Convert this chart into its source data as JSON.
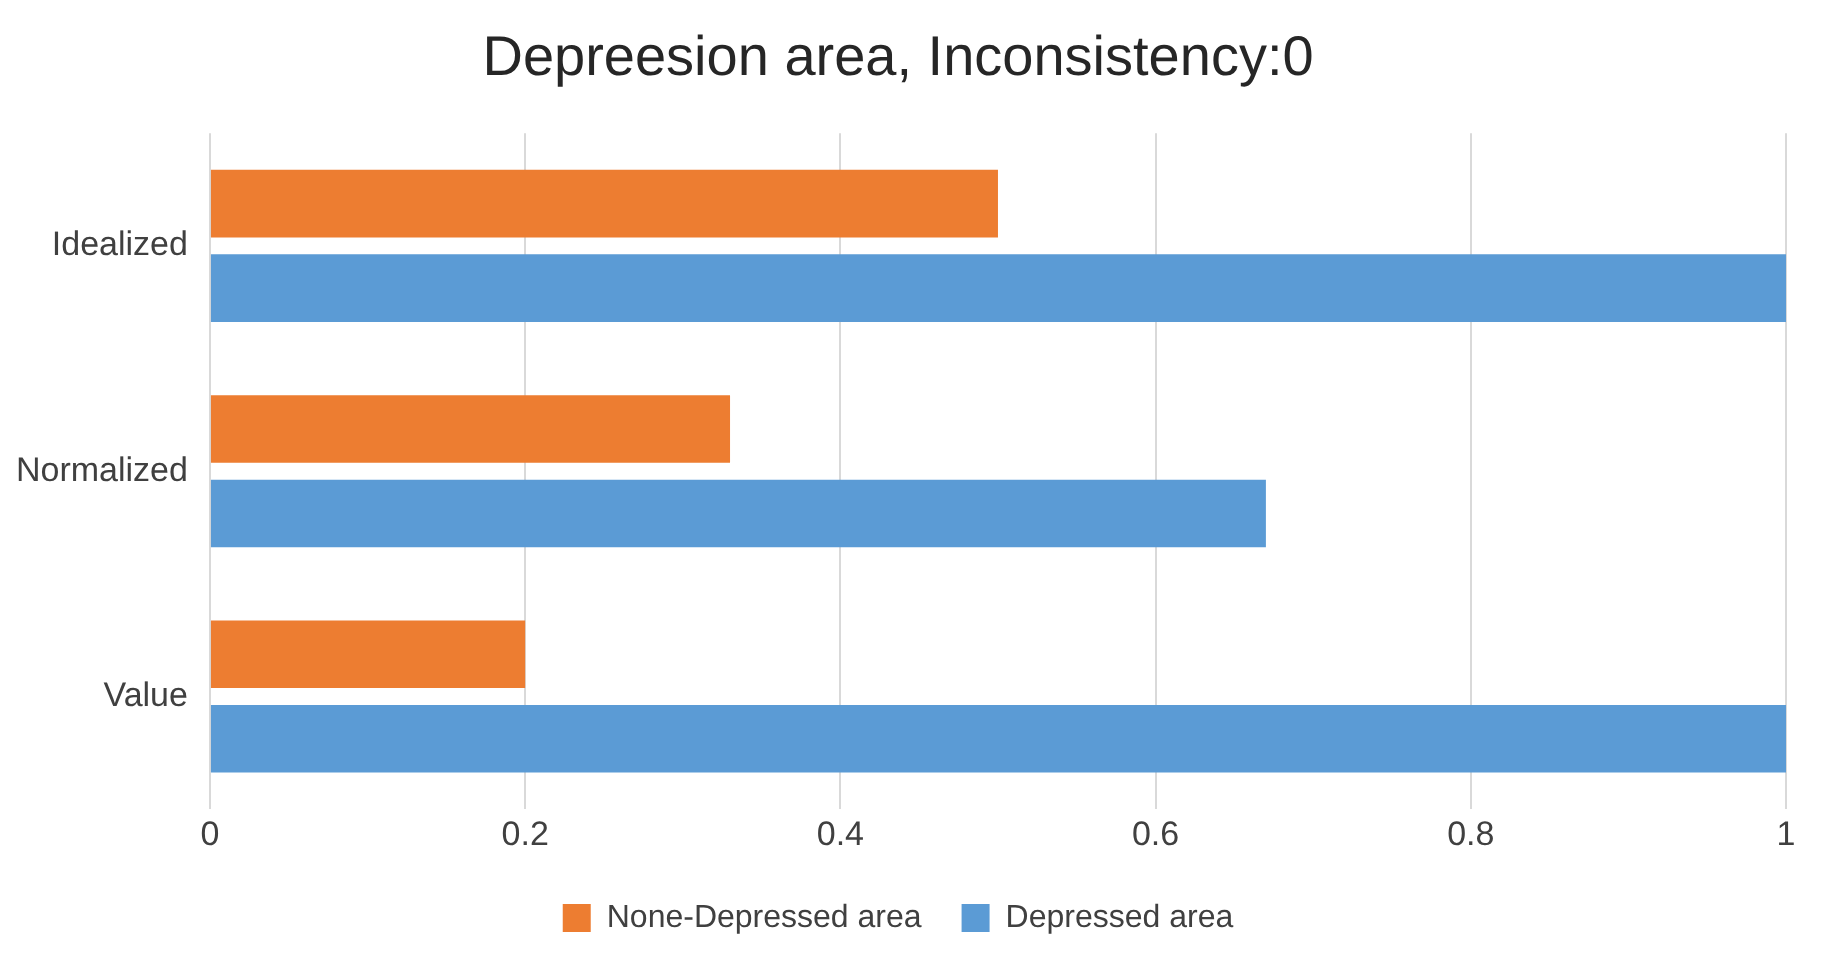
{
  "chart_data": {
    "type": "bar",
    "orientation": "horizontal",
    "title": "Depreesion area, Inconsistency:0",
    "categories": [
      "Idealized",
      "Normalized",
      "Value"
    ],
    "series": [
      {
        "name": "None-Depressed area",
        "color": "#ed7d31",
        "values": [
          0.5,
          0.33,
          0.2
        ]
      },
      {
        "name": "Depressed area",
        "color": "#5b9bd5",
        "values": [
          1,
          0.67,
          1
        ]
      }
    ],
    "xlim": [
      0,
      1
    ],
    "xticks": [
      0,
      0.2,
      0.4,
      0.6,
      0.8,
      1
    ],
    "grid": "x",
    "legend": "bottom"
  }
}
